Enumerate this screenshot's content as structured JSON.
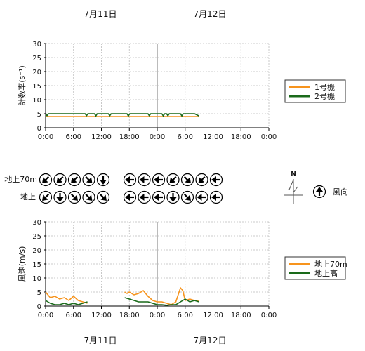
{
  "dates_top": [
    "7月11日",
    "7月12日"
  ],
  "dates_bottom": [
    "7月11日",
    "7月12日"
  ],
  "x_ticks": [
    "0:00",
    "6:00",
    "12:00",
    "18:00",
    "0:00",
    "6:00",
    "12:00",
    "18:00",
    "0:00"
  ],
  "wind_rows": {
    "upper_label": "地上70m",
    "lower_label": "地上",
    "legend_label": "風向",
    "north_label": "N",
    "upper_left": [
      "southwest-arrow",
      "southwest-arrow",
      "southwest-arrow",
      "southeast-arrow",
      "south-arrow"
    ],
    "upper_right": [
      "west-arrow",
      "west-arrow",
      "west-arrow",
      "southwest-arrow",
      "southeast-arrow",
      "southwest-arrow",
      "west-arrow"
    ],
    "lower_left": [
      "southwest-arrow",
      "south-arrow",
      "southeast-arrow",
      "southeast-arrow",
      "southeast-arrow"
    ],
    "lower_right": [
      "west-arrow",
      "west-arrow",
      "west-arrow",
      "south-arrow",
      "southeast-arrow",
      "west-arrow",
      "west-arrow"
    ],
    "legend_arrow": "north-arrow"
  },
  "chart_data": [
    {
      "type": "line",
      "ylabel": "計数率(s⁻¹)",
      "ylim": [
        0,
        30
      ],
      "yticks": [
        "0",
        "5",
        "10",
        "15",
        "20",
        "25",
        "30"
      ],
      "xlim_hours": [
        0,
        48
      ],
      "grid": true,
      "legend_position": "right",
      "series": [
        {
          "name": "1号機",
          "color": "#f7941d",
          "x_hours": [
            0,
            2,
            4,
            6,
            8,
            9.5,
            10,
            12,
            14,
            18,
            22,
            24,
            26,
            28,
            30,
            32,
            33
          ],
          "values": [
            4,
            4,
            4,
            4,
            4,
            4,
            4,
            4,
            4,
            4,
            4,
            4,
            4,
            4,
            4,
            4,
            4
          ]
        },
        {
          "name": "2号機",
          "color": "#1a6a1a",
          "x_hours": [
            0,
            0.3,
            0.6,
            2,
            5,
            8.5,
            8.8,
            9.1,
            10.5,
            10.8,
            11.1,
            13.5,
            13.8,
            14.1,
            17.5,
            17.8,
            18.1,
            22,
            22.3,
            22.6,
            25,
            25.3,
            25.6,
            26,
            26.3,
            26.6,
            29,
            29.3,
            29.6,
            32,
            33
          ],
          "values": [
            5,
            4.3,
            5,
            5,
            5,
            5,
            4.3,
            5,
            5,
            4.2,
            5,
            5,
            4.3,
            5,
            5,
            4.2,
            5,
            5,
            4.3,
            5,
            5,
            4.2,
            5,
            5,
            4.3,
            5,
            5,
            4.2,
            5,
            5,
            4.2
          ]
        }
      ]
    },
    {
      "type": "line",
      "ylabel": "風速(m/s)",
      "ylim": [
        0,
        30
      ],
      "yticks": [
        "0",
        "5",
        "10",
        "15",
        "20",
        "25",
        "30"
      ],
      "xlim_hours": [
        0,
        48
      ],
      "grid": true,
      "legend_position": "right",
      "series": [
        {
          "name": "地上70m",
          "color": "#f7941d",
          "x_hours": [
            0,
            0.5,
            1,
            2,
            3,
            4,
            5,
            6,
            7,
            8,
            9,
            null,
            17,
            17.5,
            18,
            19,
            20,
            21,
            22,
            23,
            24,
            25,
            26,
            27,
            28,
            29,
            29.5,
            30,
            31,
            32,
            33
          ],
          "values": [
            5,
            4,
            3,
            3.5,
            2.5,
            3,
            2,
            3.5,
            2,
            1.5,
            1,
            null,
            5,
            4.5,
            5,
            4,
            4.5,
            5.5,
            3.5,
            2,
            1.5,
            1.5,
            1,
            0.5,
            1.5,
            6.5,
            5.5,
            2,
            2.5,
            2,
            2
          ]
        },
        {
          "name": "地上高",
          "color": "#1a6a1a",
          "x_hours": [
            0,
            0.5,
            1,
            2,
            3,
            4,
            5,
            6,
            7,
            8,
            9,
            null,
            17,
            18,
            19,
            20,
            21,
            22,
            23,
            24,
            25,
            26,
            27,
            28,
            29,
            30,
            31,
            32,
            33
          ],
          "values": [
            2,
            1.5,
            1,
            0.5,
            0.5,
            1,
            0.5,
            1,
            0.5,
            1,
            1.5,
            null,
            3,
            2.5,
            2,
            1.5,
            1.5,
            1.5,
            1,
            0.5,
            0.5,
            0.3,
            0.5,
            0.5,
            1.5,
            2.5,
            1.5,
            2,
            1.5
          ]
        }
      ]
    }
  ]
}
